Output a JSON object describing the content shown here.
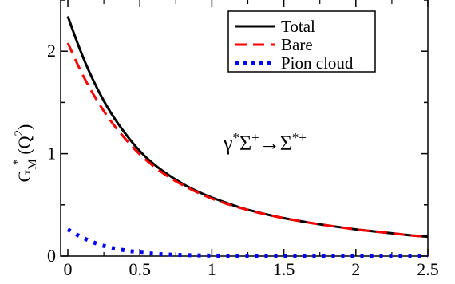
{
  "chart_data": {
    "type": "line",
    "title": "",
    "ylabel": "G_M^*(Q^2)",
    "ylabel_parts": {
      "main": "G",
      "sub": "M",
      "sup": "*",
      "paren_open": "(Q",
      "exp": "2",
      "paren_close": ")"
    },
    "xlabel": "",
    "xlim": [
      -0.05,
      2.5
    ],
    "ylim": [
      0,
      2.5
    ],
    "xticks": [
      "0",
      "0.5",
      "1",
      "1.5",
      "2",
      "2.5"
    ],
    "xtick_values": [
      0,
      0.5,
      1,
      1.5,
      2,
      2.5
    ],
    "yticks": [
      "0",
      "1",
      "2"
    ],
    "ytick_values": [
      0,
      1,
      2
    ],
    "grid": false,
    "legend_position": "top-right",
    "annotation": {
      "gamma": "γ",
      "star1": "*",
      "sigma1": "Σ",
      "plus1": "+",
      "arrow": "→",
      "sigma2": "Σ",
      "star_plus": "*+"
    },
    "series": [
      {
        "name": "Total",
        "color": "#000000",
        "style": "solid",
        "x": [
          0,
          0.1,
          0.2,
          0.3,
          0.4,
          0.5,
          0.6,
          0.7,
          0.8,
          0.9,
          1.0,
          1.1,
          1.2,
          1.3,
          1.4,
          1.5,
          1.6,
          1.7,
          1.8,
          1.9,
          2.0,
          2.1,
          2.2,
          2.3,
          2.4,
          2.5
        ],
        "y": [
          2.34,
          1.95,
          1.64,
          1.39,
          1.19,
          1.02,
          0.89,
          0.79,
          0.7,
          0.63,
          0.57,
          0.52,
          0.47,
          0.435,
          0.4,
          0.37,
          0.345,
          0.32,
          0.3,
          0.28,
          0.26,
          0.245,
          0.23,
          0.215,
          0.2,
          0.19
        ]
      },
      {
        "name": "Bare",
        "color": "#ff0000",
        "style": "dashed",
        "x": [
          0,
          0.1,
          0.2,
          0.3,
          0.4,
          0.5,
          0.6,
          0.7,
          0.8,
          0.9,
          1.0,
          1.1,
          1.2,
          1.3,
          1.4,
          1.5,
          1.6,
          1.7,
          1.8,
          1.9,
          2.0,
          2.1,
          2.2,
          2.3,
          2.4,
          2.5
        ],
        "y": [
          2.08,
          1.77,
          1.52,
          1.31,
          1.14,
          0.99,
          0.87,
          0.77,
          0.69,
          0.62,
          0.56,
          0.51,
          0.47,
          0.43,
          0.4,
          0.37,
          0.345,
          0.32,
          0.3,
          0.28,
          0.26,
          0.245,
          0.23,
          0.215,
          0.2,
          0.19
        ]
      },
      {
        "name": "Pion cloud",
        "color": "#0000ff",
        "style": "dotted",
        "x": [
          0,
          0.1,
          0.2,
          0.3,
          0.4,
          0.5,
          0.6,
          0.7,
          0.8,
          0.9,
          1.0,
          1.2,
          1.4,
          1.6,
          1.8,
          2.0,
          2.2,
          2.4,
          2.5
        ],
        "y": [
          0.26,
          0.18,
          0.12,
          0.08,
          0.055,
          0.035,
          0.022,
          0.015,
          0.01,
          0.007,
          0.005,
          0.003,
          0.002,
          0.001,
          0.001,
          0.0,
          0.0,
          0.0,
          0.0
        ]
      }
    ]
  }
}
